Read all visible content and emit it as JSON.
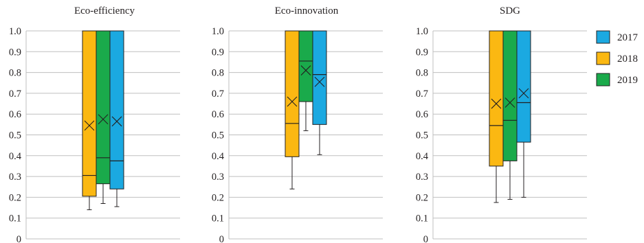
{
  "chart_data": {
    "type": "boxplot",
    "ylim": [
      0,
      1.0
    ],
    "yticks": [
      "0",
      "0.1",
      "0.2",
      "0.3",
      "0.4",
      "0.5",
      "0.6",
      "0.7",
      "0.8",
      "0.9",
      "1.0"
    ],
    "grid": true,
    "legend": {
      "placement": "right",
      "entries": [
        {
          "label": "2017",
          "color": "#1ba9e1"
        },
        {
          "label": "2018",
          "color": "#fbb812"
        },
        {
          "label": "2019",
          "color": "#1aaa4b"
        }
      ]
    },
    "panels": [
      {
        "title": "Eco-efficiency",
        "boxes": [
          {
            "series": "2018",
            "color": "#fbb812",
            "min": 0.14,
            "q1": 0.205,
            "median": 0.305,
            "q3": 1.0,
            "max": 1.0,
            "mean": 0.545
          },
          {
            "series": "2019",
            "color": "#1aaa4b",
            "min": 0.17,
            "q1": 0.265,
            "median": 0.39,
            "q3": 1.0,
            "max": 1.0,
            "mean": 0.575
          },
          {
            "series": "2017",
            "color": "#1ba9e1",
            "min": 0.155,
            "q1": 0.24,
            "median": 0.375,
            "q3": 1.0,
            "max": 1.0,
            "mean": 0.565
          }
        ]
      },
      {
        "title": "Eco-innovation",
        "boxes": [
          {
            "series": "2018",
            "color": "#fbb812",
            "min": 0.24,
            "q1": 0.395,
            "median": 0.555,
            "q3": 1.0,
            "max": 1.0,
            "mean": 0.66
          },
          {
            "series": "2019",
            "color": "#1aaa4b",
            "min": 0.52,
            "q1": 0.66,
            "median": 0.855,
            "q3": 1.0,
            "max": 1.0,
            "mean": 0.81
          },
          {
            "series": "2017",
            "color": "#1ba9e1",
            "min": 0.405,
            "q1": 0.55,
            "median": 0.79,
            "q3": 1.0,
            "max": 1.0,
            "mean": 0.755
          }
        ]
      },
      {
        "title": "SDG",
        "boxes": [
          {
            "series": "2018",
            "color": "#fbb812",
            "min": 0.175,
            "q1": 0.35,
            "median": 0.545,
            "q3": 1.0,
            "max": 1.0,
            "mean": 0.65
          },
          {
            "series": "2019",
            "color": "#1aaa4b",
            "min": 0.19,
            "q1": 0.375,
            "median": 0.57,
            "q3": 1.0,
            "max": 1.0,
            "mean": 0.655
          },
          {
            "series": "2017",
            "color": "#1ba9e1",
            "min": 0.2,
            "q1": 0.465,
            "median": 0.655,
            "q3": 1.0,
            "max": 1.0,
            "mean": 0.7
          }
        ]
      }
    ]
  }
}
